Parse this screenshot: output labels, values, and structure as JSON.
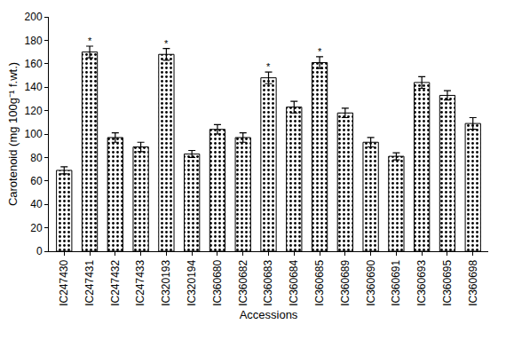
{
  "chart_data": {
    "type": "bar",
    "x_label": "Accessions",
    "y_label": "Carotenoid (mg 100g⁻¹ f.wt.)",
    "categories": [
      "IC247430",
      "IC247431",
      "IC247432",
      "IC247433",
      "IC320193",
      "IC320194",
      "IC360680",
      "IC360682",
      "IC360683",
      "IC360684",
      "IC360685",
      "IC360689",
      "IC360690",
      "IC360691",
      "IC360693",
      "IC360695",
      "IC360698"
    ],
    "values": [
      69,
      170,
      97,
      89,
      168,
      83,
      104,
      97,
      148,
      123,
      161,
      118,
      93,
      81,
      144,
      133,
      109
    ],
    "errors": [
      3,
      5,
      4,
      4,
      5,
      3,
      4,
      4,
      5,
      5,
      5,
      4,
      4,
      3,
      5,
      4,
      5
    ],
    "color": "#ffffff",
    "ylim": [
      0,
      200
    ],
    "yticks": [
      0,
      20,
      40,
      60,
      80,
      100,
      120,
      140,
      160,
      180,
      200
    ],
    "grid": false,
    "annotations": [
      {
        "category": "IC247431",
        "text": "*"
      },
      {
        "category": "IC320193",
        "text": "*"
      },
      {
        "category": "IC360683",
        "text": "*"
      },
      {
        "category": "IC360685",
        "text": "*"
      }
    ]
  }
}
